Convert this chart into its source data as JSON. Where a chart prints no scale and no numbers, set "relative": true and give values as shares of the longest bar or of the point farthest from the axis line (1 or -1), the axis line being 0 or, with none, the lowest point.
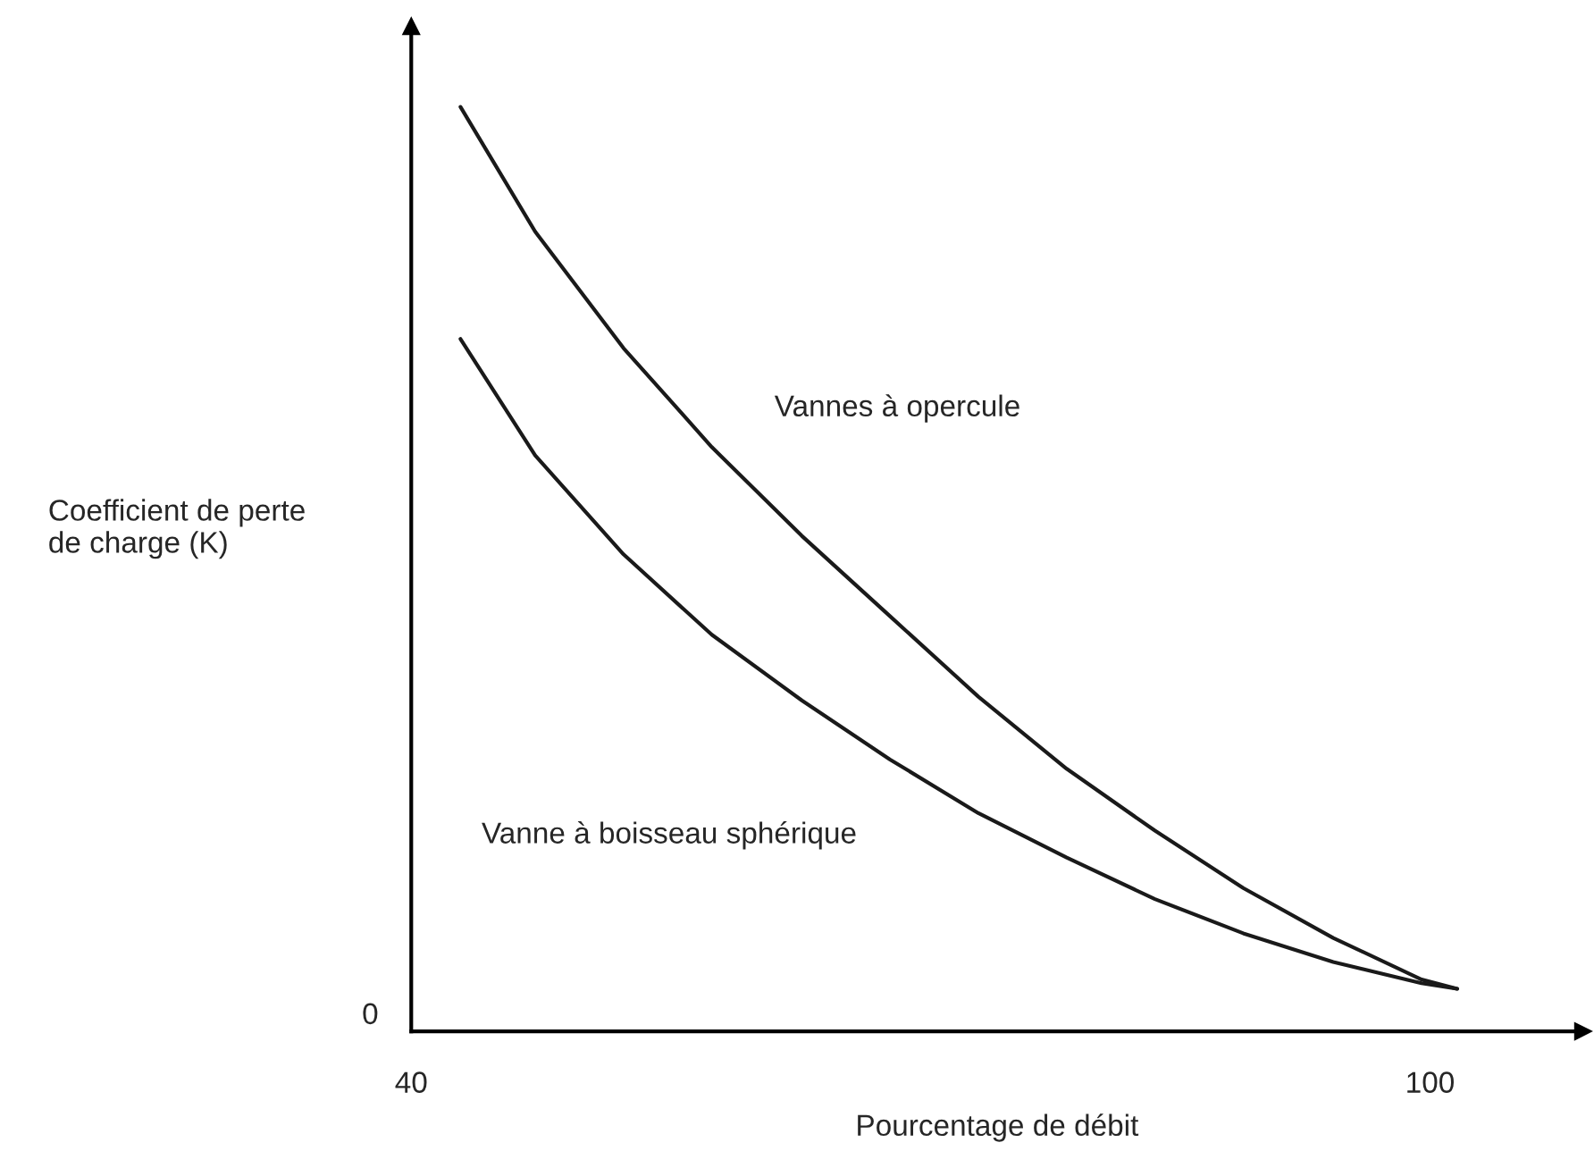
{
  "chart_data": {
    "type": "line",
    "relative": true,
    "xlabel": "Pourcentage de débit",
    "ylabel": "Coefficient de perte\nde charge (K)",
    "xlim": [
      40,
      109
    ],
    "xticks": [
      40,
      100
    ],
    "annotations": [
      "0"
    ],
    "grid": false,
    "legend": false,
    "marker": "none",
    "line_style": "solid",
    "series": [
      {
        "name": "Vannes à opercule",
        "color": "#1a1a1a",
        "x": [
          42.9,
          47.3,
          52.5,
          57.7,
          63.0,
          68.2,
          73.4,
          78.6,
          83.8,
          89.0,
          94.3,
          99.5,
          101.6
        ],
        "values": [
          1,
          0.865,
          0.739,
          0.632,
          0.536,
          0.449,
          0.362,
          0.284,
          0.217,
          0.155,
          0.101,
          0.056,
          0.046
        ]
      },
      {
        "name": "Vanne à boisseau sphérique",
        "color": "#1a1a1a",
        "x": [
          42.9,
          47.3,
          52.5,
          57.7,
          63.0,
          68.2,
          73.4,
          78.6,
          83.8,
          89.0,
          94.3,
          99.5,
          101.6
        ],
        "values": [
          0.749,
          0.623,
          0.516,
          0.429,
          0.358,
          0.294,
          0.236,
          0.188,
          0.143,
          0.106,
          0.075,
          0.052,
          0.046
        ]
      }
    ]
  }
}
